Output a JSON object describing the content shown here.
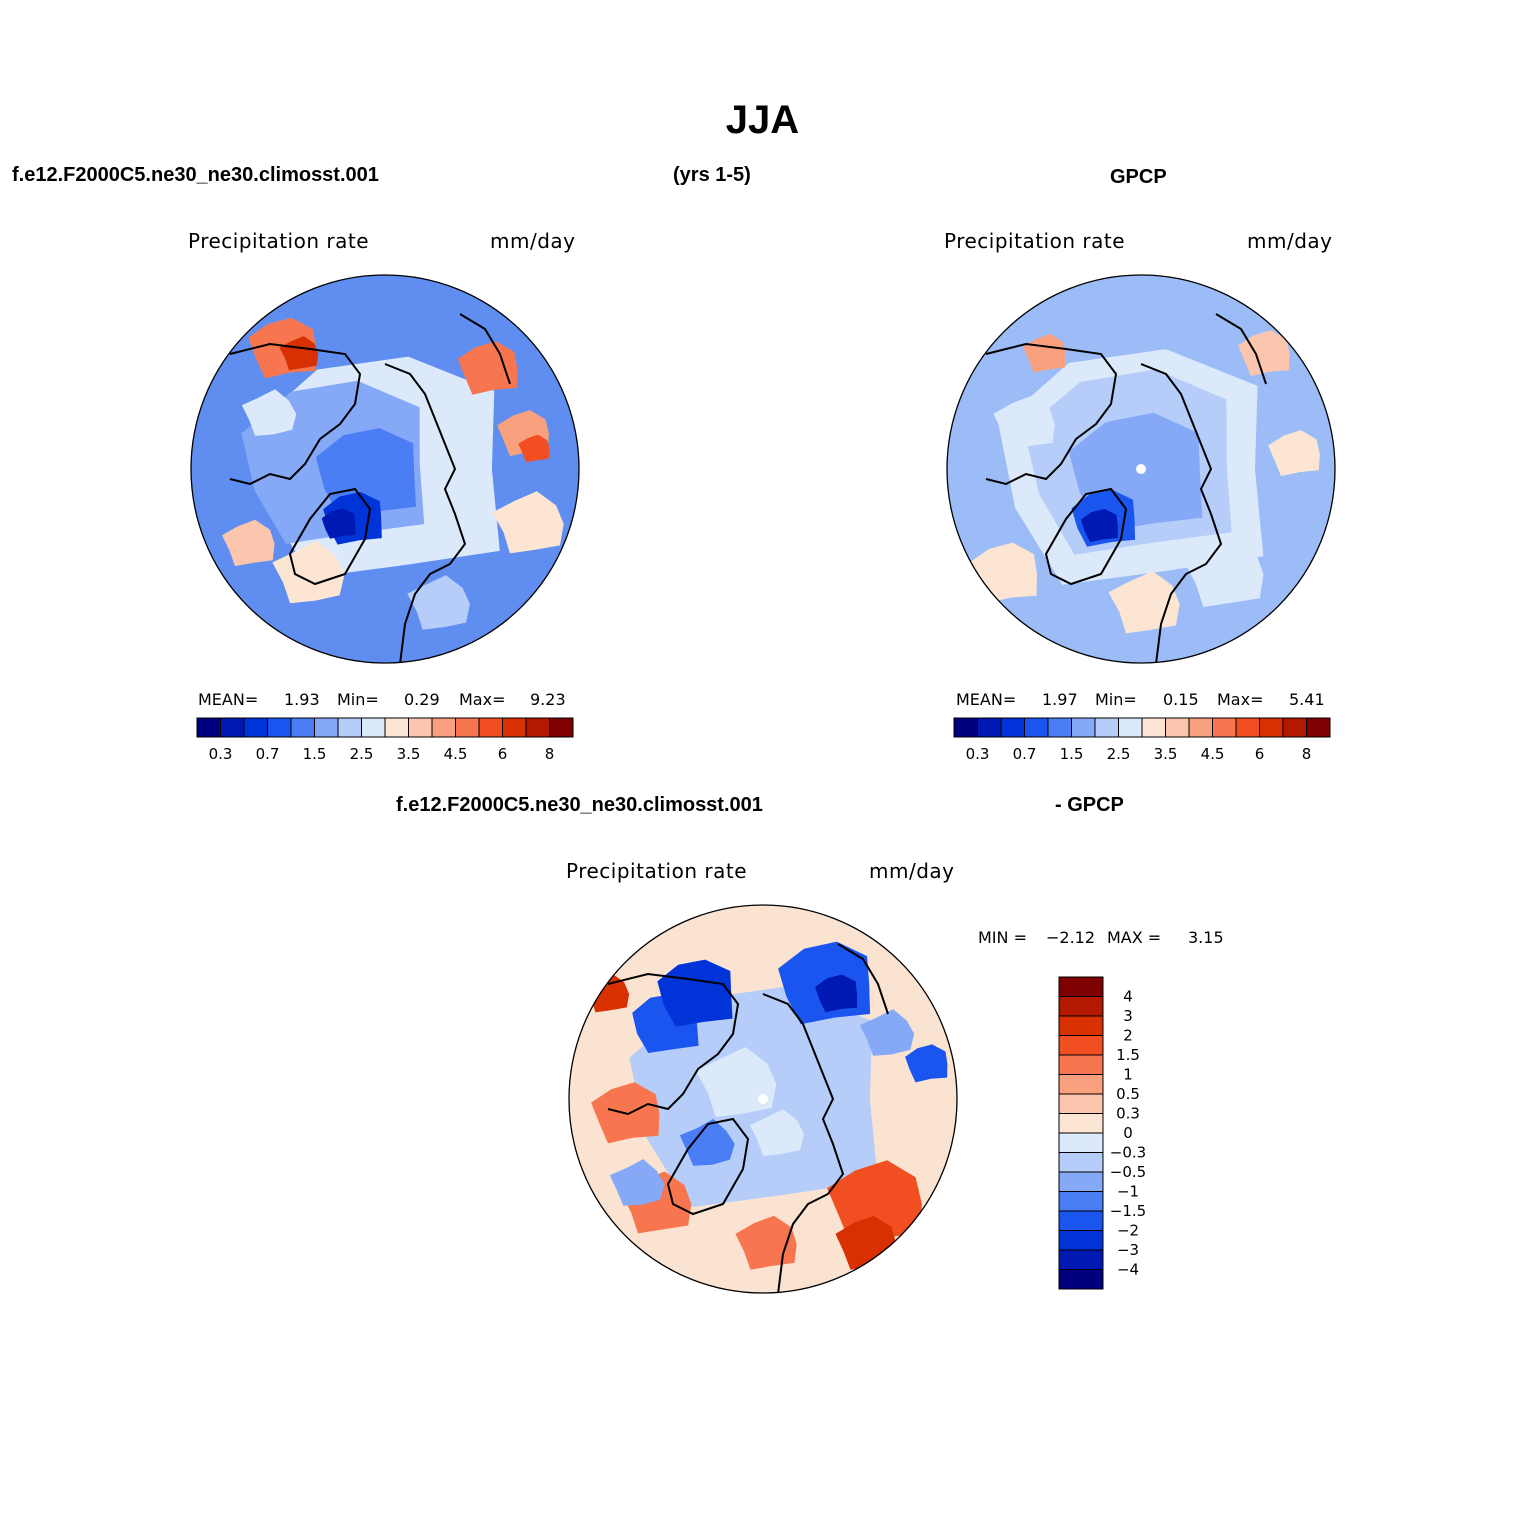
{
  "title": "JJA",
  "header": {
    "case": "f.e12.F2000C5.ne30_ne30.climosst.001",
    "years": "(yrs 1-5)",
    "obs": "GPCP"
  },
  "diff_header": {
    "case": "f.e12.F2000C5.ne30_ne30.climosst.001",
    "obs": "- GPCP"
  },
  "panels": [
    {
      "id": "model",
      "variable": "Precipitation rate",
      "units": "mm/day",
      "stats": {
        "mean_label": "MEAN=",
        "mean": "1.93",
        "min_label": "Min=",
        "min": "0.29",
        "max_label": "Max=",
        "max": "9.23"
      }
    },
    {
      "id": "gpcp",
      "variable": "Precipitation rate",
      "units": "mm/day",
      "stats": {
        "mean_label": "MEAN=",
        "mean": "1.97",
        "min_label": "Min=",
        "min": "0.15",
        "max_label": "Max=",
        "max": "5.41"
      }
    },
    {
      "id": "diff",
      "variable": "Precipitation rate",
      "units": "mm/day",
      "stats": {
        "min_label": "MIN =",
        "min": "−2.12",
        "max_label": "MAX =",
        "max": "3.15"
      }
    }
  ],
  "colorbar_abs": {
    "colors": [
      "#00007f",
      "#0019b2",
      "#0033d8",
      "#1a55f0",
      "#4b7df5",
      "#85a8f7",
      "#b5cdf8",
      "#dbe9fb",
      "#fde5d4",
      "#fcc5ad",
      "#f9a07f",
      "#f7764f",
      "#f14f22",
      "#d83000",
      "#b21900",
      "#7f0000"
    ],
    "tick_labels": [
      "0.3",
      "0.7",
      "1.5",
      "2.5",
      "3.5",
      "4.5",
      "6",
      "8"
    ]
  },
  "colorbar_diff": {
    "colors": [
      "#7f0000",
      "#b21900",
      "#d83000",
      "#f14f22",
      "#f7764f",
      "#f9a07f",
      "#fcc5ad",
      "#fde5d4",
      "#dbe9fb",
      "#b5cdf8",
      "#85a8f7",
      "#4b7df5",
      "#1a55f0",
      "#0033d8",
      "#0019b2",
      "#00007f"
    ],
    "tick_labels": [
      "4",
      "3",
      "2",
      "1.5",
      "1",
      "0.5",
      "0.3",
      "0",
      "−0.3",
      "−0.5",
      "−1",
      "−1.5",
      "−2",
      "−3",
      "−4"
    ]
  },
  "map_palette": {
    "ocean_model": "#5f8ef0",
    "ocean_obs": "#9bbcf7",
    "ocean_diff": "#fbe3d2",
    "coast": "#000000"
  }
}
